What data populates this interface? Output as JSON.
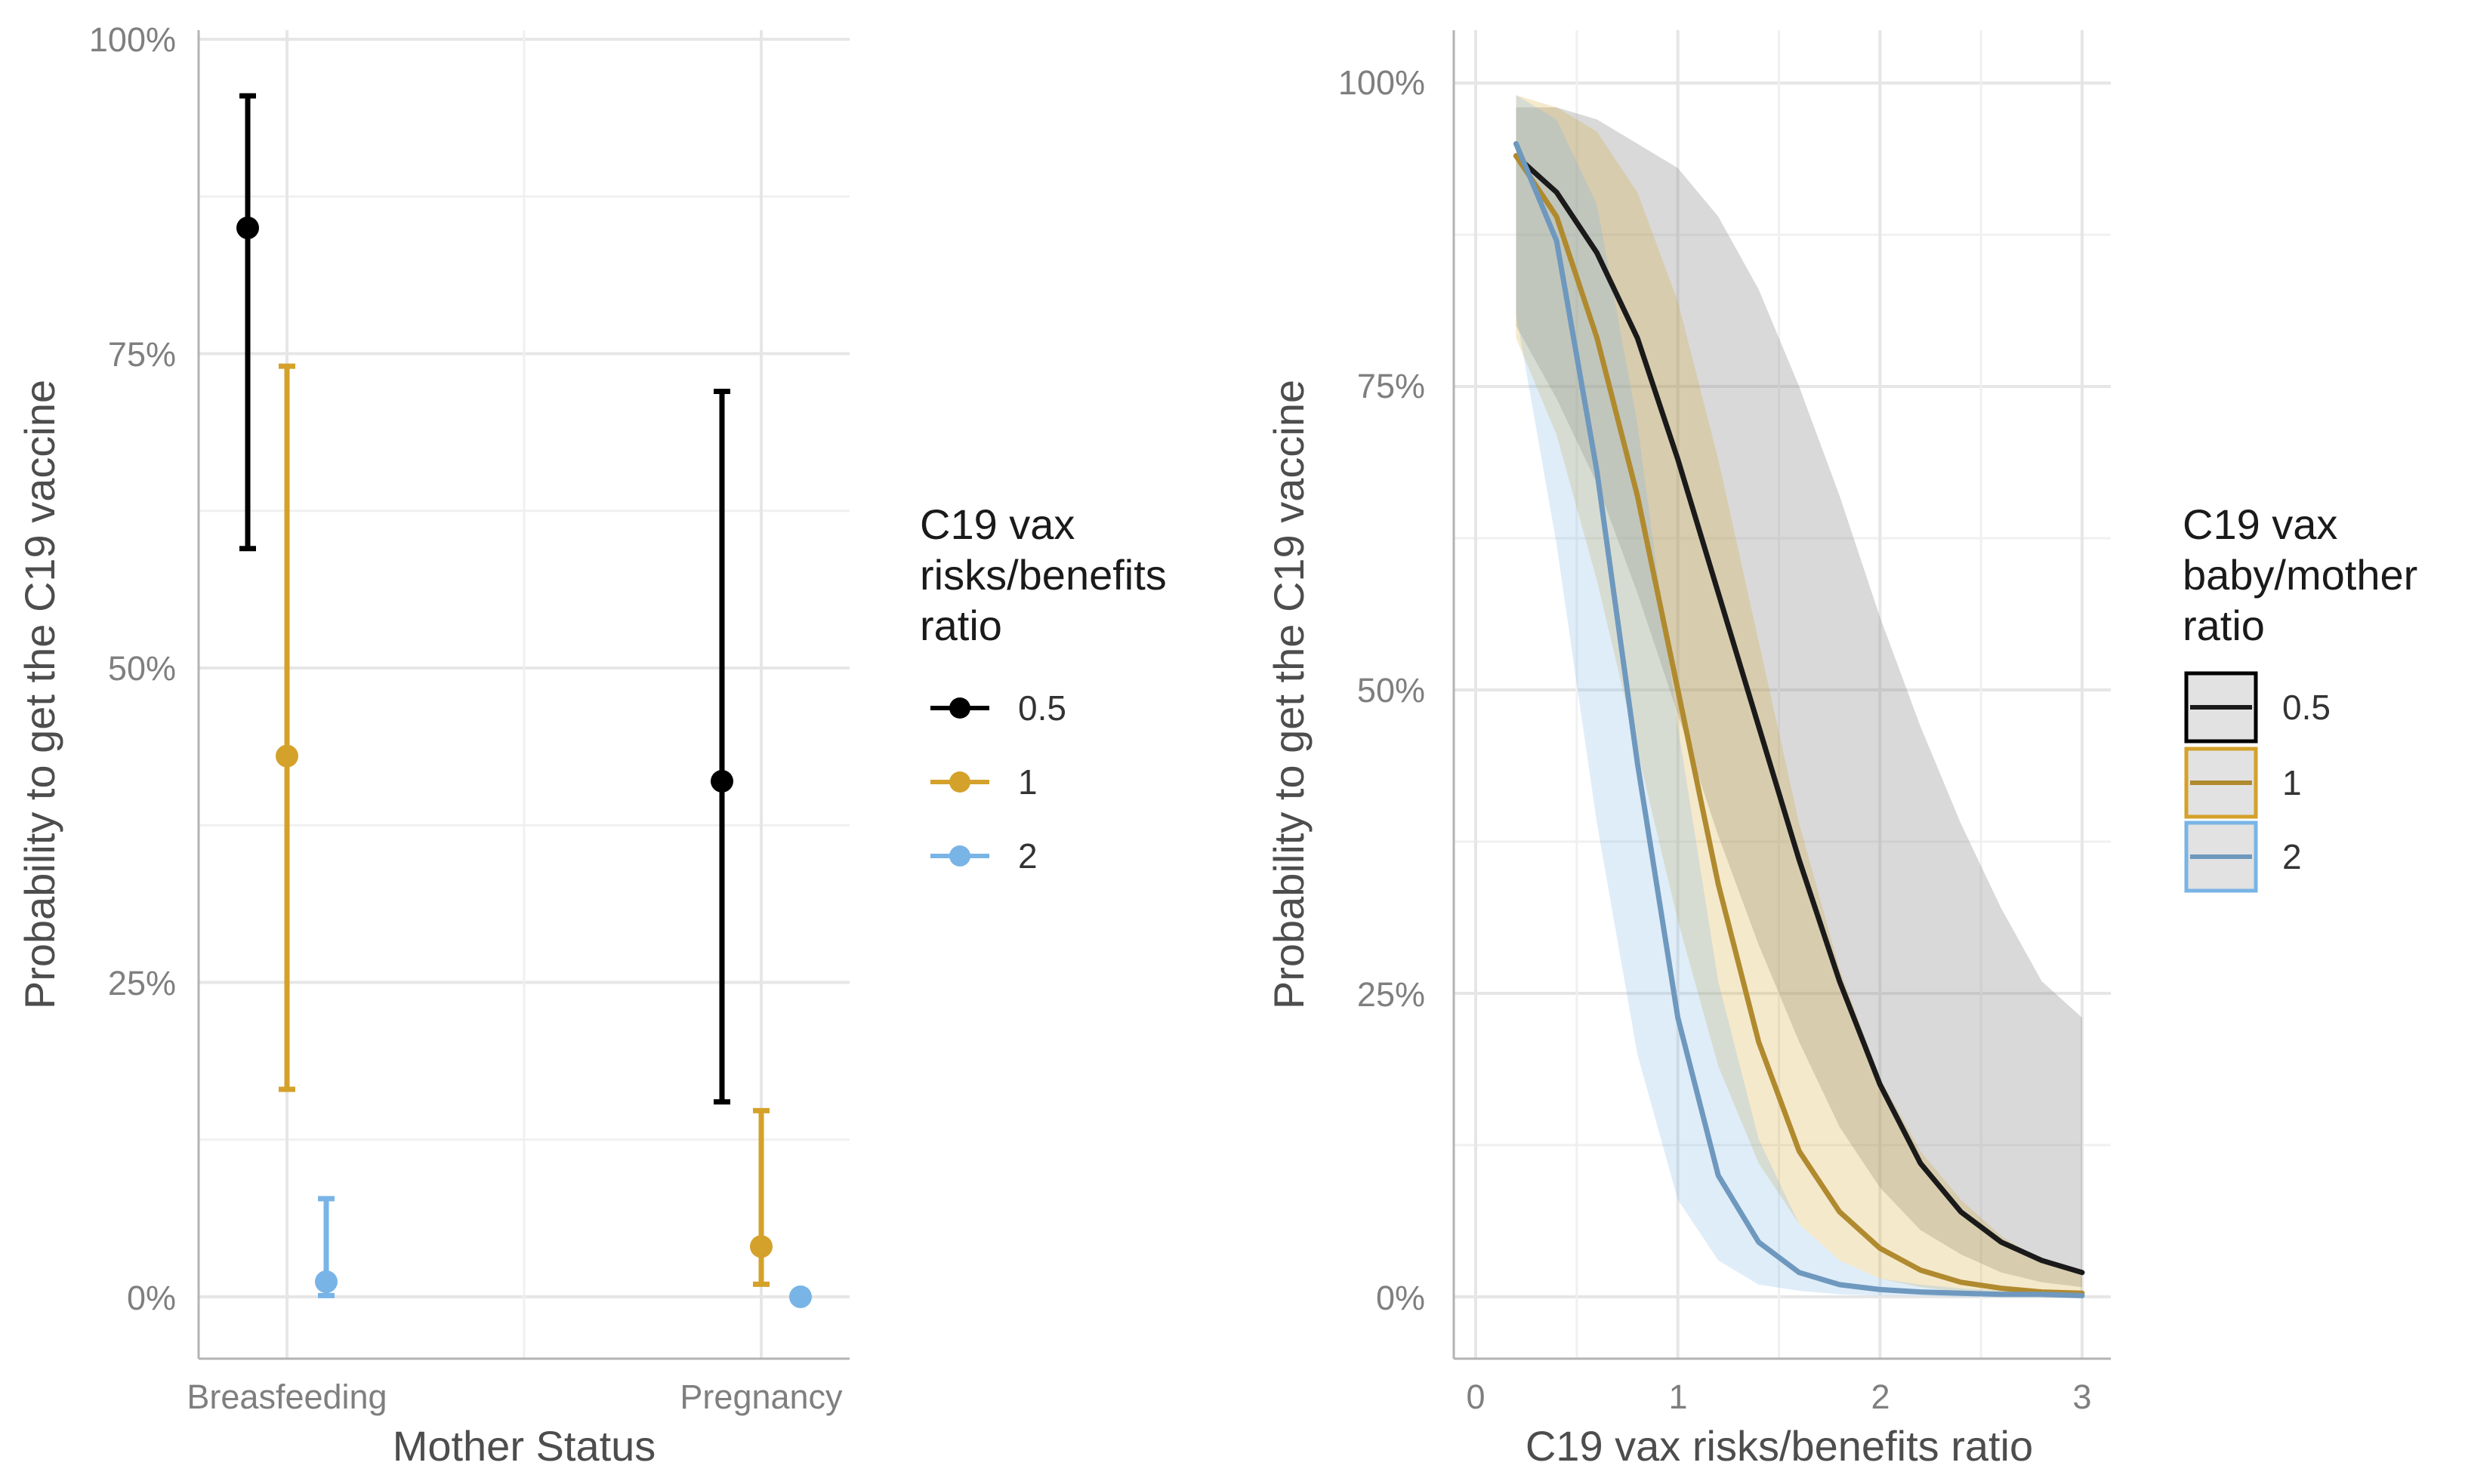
{
  "colors": {
    "0.5": "#000000",
    "1": "#D4A12A",
    "2": "#79B4E6"
  },
  "chart_data": [
    {
      "type": "scatter",
      "title": "",
      "xlabel": "Mother Status",
      "ylabel": "Probability to get the C19 vaccine",
      "categories": [
        "Breasfeeding",
        "Pregnancy"
      ],
      "ylim": [
        0,
        1
      ],
      "yticks": [
        "0%",
        "25%",
        "50%",
        "75%",
        "100%"
      ],
      "legend": {
        "title": [
          "C19 vax",
          "risks/benefits",
          "ratio"
        ],
        "position": "right"
      },
      "series": [
        {
          "name": "0.5",
          "values": [
            0.85,
            0.41
          ],
          "lower": [
            0.595,
            0.155
          ],
          "upper": [
            0.955,
            0.72
          ]
        },
        {
          "name": "1",
          "values": [
            0.43,
            0.04
          ],
          "lower": [
            0.165,
            0.01
          ],
          "upper": [
            0.74,
            0.148
          ]
        },
        {
          "name": "2",
          "values": [
            0.012,
            0.0
          ],
          "lower": [
            0.001,
            0.0
          ],
          "upper": [
            0.078,
            0.0
          ]
        }
      ]
    },
    {
      "type": "line",
      "title": "",
      "xlabel": "C19 vax risks/benefits ratio",
      "ylabel": "Probability to get the C19 vaccine",
      "xlim": [
        0,
        3
      ],
      "ylim": [
        0,
        1
      ],
      "xticks": [
        "0",
        "1",
        "2",
        "3"
      ],
      "yticks": [
        "0%",
        "25%",
        "50%",
        "75%",
        "100%"
      ],
      "legend": {
        "title": [
          "C19 vax",
          "baby/mother",
          "ratio"
        ],
        "position": "right"
      },
      "x": [
        0.2,
        0.4,
        0.6,
        0.8,
        1.0,
        1.2,
        1.4,
        1.6,
        1.8,
        2.0,
        2.2,
        2.4,
        2.6,
        2.8,
        3.0
      ],
      "series": [
        {
          "name": "0.5",
          "values": [
            0.94,
            0.91,
            0.86,
            0.79,
            0.69,
            0.58,
            0.47,
            0.36,
            0.26,
            0.175,
            0.11,
            0.07,
            0.045,
            0.03,
            0.02
          ],
          "lower": [
            0.8,
            0.74,
            0.67,
            0.58,
            0.48,
            0.38,
            0.29,
            0.21,
            0.14,
            0.09,
            0.055,
            0.035,
            0.02,
            0.012,
            0.008
          ],
          "upper": [
            0.98,
            0.98,
            0.97,
            0.95,
            0.93,
            0.89,
            0.83,
            0.75,
            0.66,
            0.56,
            0.47,
            0.39,
            0.32,
            0.26,
            0.23
          ]
        },
        {
          "name": "1",
          "values": [
            0.94,
            0.89,
            0.79,
            0.66,
            0.5,
            0.34,
            0.21,
            0.12,
            0.07,
            0.04,
            0.022,
            0.012,
            0.007,
            0.004,
            0.003
          ],
          "lower": [
            0.79,
            0.71,
            0.59,
            0.45,
            0.31,
            0.19,
            0.11,
            0.06,
            0.03,
            0.015,
            0.008,
            0.004,
            0.002,
            0.001,
            0.001
          ],
          "upper": [
            0.99,
            0.98,
            0.96,
            0.91,
            0.82,
            0.69,
            0.54,
            0.39,
            0.27,
            0.18,
            0.12,
            0.08,
            0.05,
            0.03,
            0.02
          ]
        },
        {
          "name": "2",
          "values": [
            0.95,
            0.87,
            0.68,
            0.44,
            0.23,
            0.1,
            0.045,
            0.02,
            0.01,
            0.006,
            0.004,
            0.003,
            0.002,
            0.002,
            0.001
          ],
          "lower": [
            0.81,
            0.62,
            0.39,
            0.2,
            0.08,
            0.03,
            0.01,
            0.005,
            0.002,
            0.001,
            0.001,
            0.0,
            0.0,
            0.0,
            0.0
          ],
          "upper": [
            0.99,
            0.97,
            0.9,
            0.72,
            0.47,
            0.26,
            0.13,
            0.06,
            0.03,
            0.015,
            0.01,
            0.007,
            0.005,
            0.004,
            0.003
          ]
        }
      ]
    }
  ]
}
